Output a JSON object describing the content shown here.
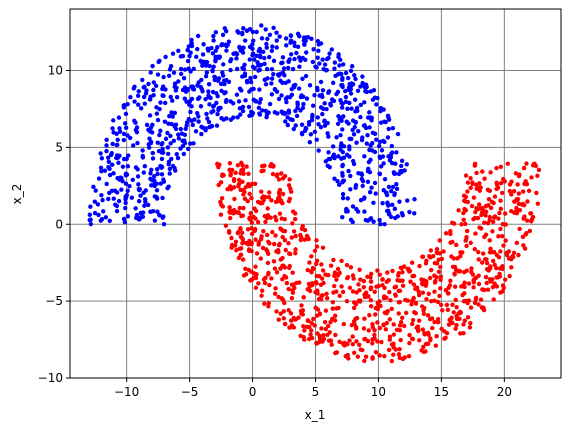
{
  "chart_data": {
    "type": "scatter",
    "xlabel": "x_1",
    "ylabel": "x_2",
    "xlim": [
      -14.5,
      24.5
    ],
    "ylim": [
      -10,
      14
    ],
    "xticks": [
      -10,
      -5,
      0,
      5,
      10,
      15,
      20
    ],
    "yticks": [
      -10,
      -5,
      0,
      5,
      10
    ],
    "grid": true,
    "series": [
      {
        "color": "#0000ff",
        "shape": "upper moon",
        "center": [
          0,
          0
        ],
        "outer_radius": 13,
        "inner_radius": 7,
        "angle_range_deg": [
          0,
          180
        ],
        "count": 1000
      },
      {
        "color": "#ff0000",
        "shape": "lower moon",
        "center": [
          10,
          4
        ],
        "outer_radius": 13,
        "inner_radius": 7,
        "angle_range_deg": [
          180,
          360
        ],
        "count": 1000
      }
    ]
  }
}
